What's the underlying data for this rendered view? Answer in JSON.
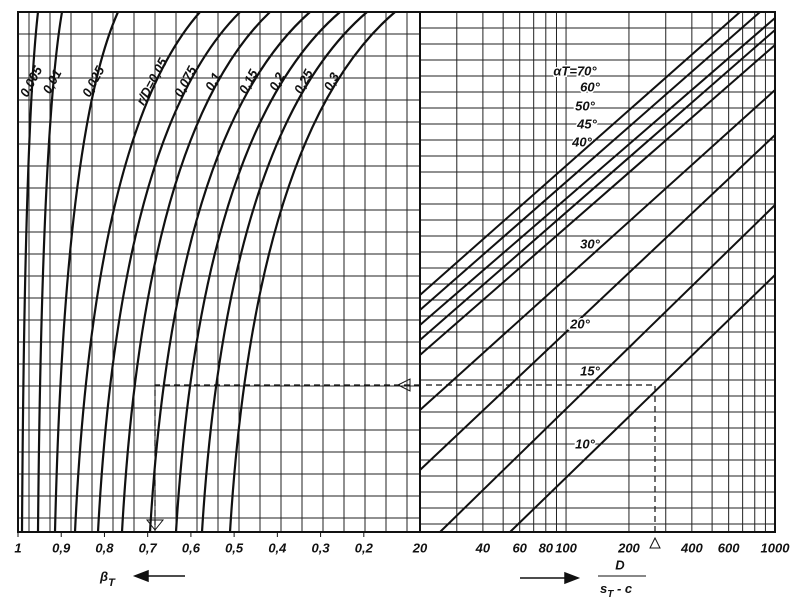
{
  "chart_data": {
    "type": "nomogram",
    "left_axis": {
      "xlim": [
        1,
        0.07
      ],
      "xticks": [
        1,
        {
          "value": 0.9,
          "label": "0,9"
        },
        {
          "value": 0.8,
          "label": "0,8"
        },
        {
          "value": 0.7,
          "label": "0,7"
        },
        {
          "value": 0.6,
          "label": "0,6"
        },
        {
          "value": 0.5,
          "label": "0,5"
        },
        {
          "value": 0.4,
          "label": "0,4"
        },
        {
          "value": 0.3,
          "label": "0,3"
        },
        {
          "value": 0.2,
          "label": "0,2"
        }
      ],
      "label": "β",
      "label_sub": "T"
    },
    "right_axis": {
      "xlim": [
        20,
        1000
      ],
      "log": true,
      "xticks": [
        20,
        40,
        60,
        80,
        100,
        200,
        400,
        600,
        1000
      ],
      "label_num": "D",
      "label_den_main": "s",
      "label_den_sub": "T",
      "label_den_rest": " - c"
    },
    "curves": [
      {
        "name": "0,005"
      },
      {
        "name": "0,01"
      },
      {
        "name": "0,025"
      },
      {
        "name": "r/D=0,05"
      },
      {
        "name": "0,075"
      },
      {
        "name": "0,1"
      },
      {
        "name": "0,15"
      },
      {
        "name": "0,2"
      },
      {
        "name": "0,25"
      },
      {
        "name": "0,3"
      }
    ],
    "lines": [
      {
        "name": "10°"
      },
      {
        "name": "15°"
      },
      {
        "name": "20°"
      },
      {
        "name": "30°"
      },
      {
        "name": "40°"
      },
      {
        "name": "45°"
      },
      {
        "name": "50°"
      },
      {
        "name": "60°"
      },
      {
        "name": "αT=70°"
      }
    ],
    "color": "#111"
  }
}
